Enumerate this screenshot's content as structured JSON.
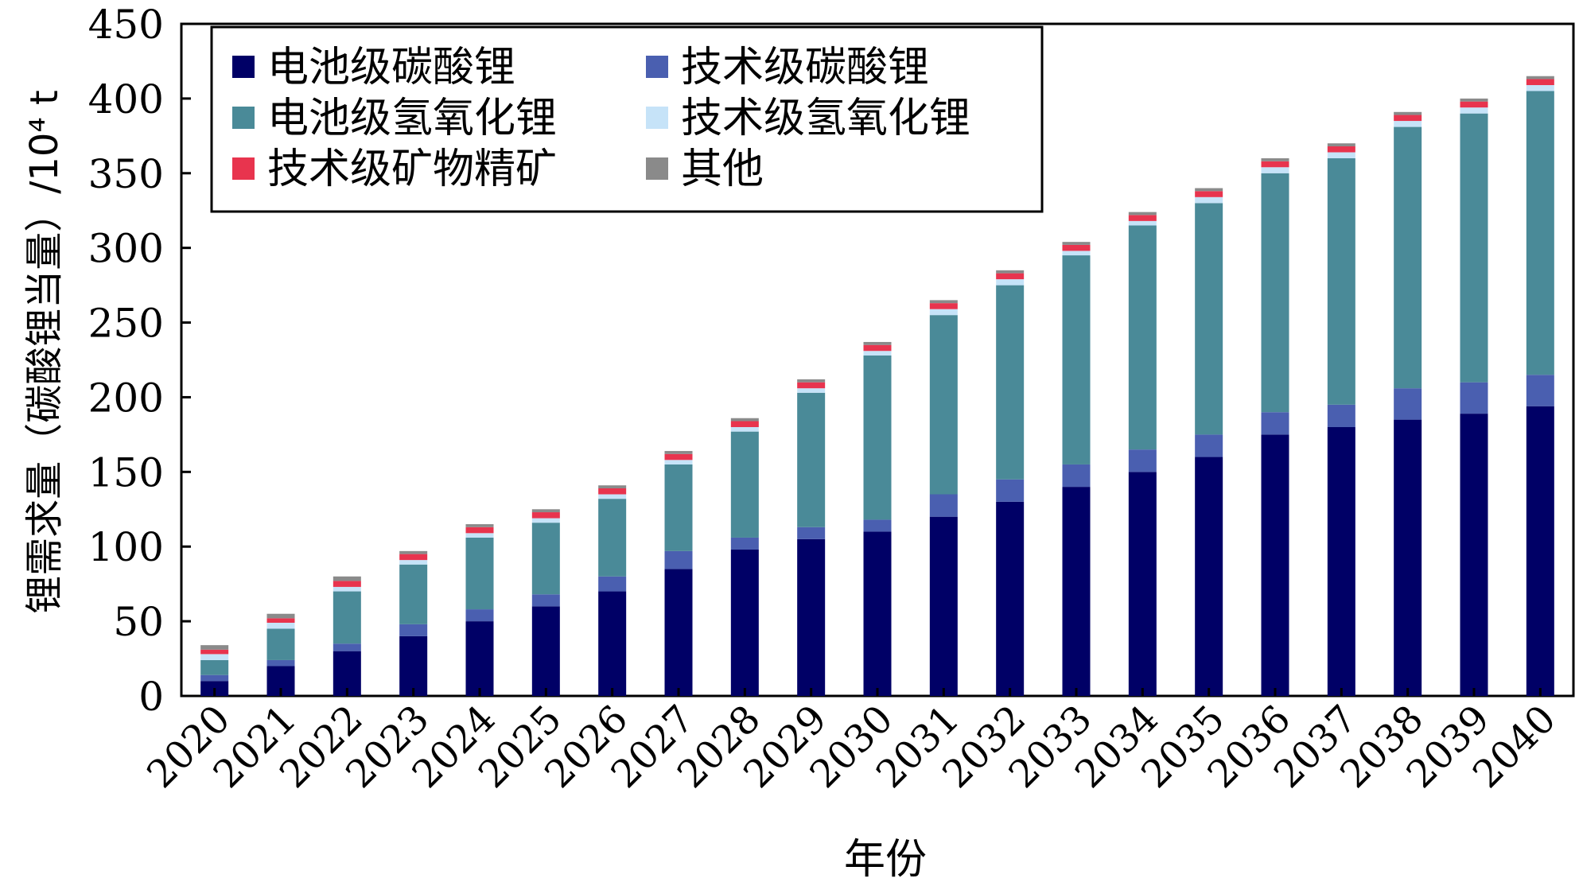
{
  "chart_data": {
    "type": "bar",
    "stacked": true,
    "title": "",
    "xlabel": "年份",
    "ylabel": "锂需求量（碳酸锂当量）/10⁴ t",
    "ylim": [
      0,
      450
    ],
    "yticks": [
      0,
      50,
      100,
      150,
      200,
      250,
      300,
      350,
      400,
      450
    ],
    "grid": false,
    "legend_position": "top-left",
    "categories": [
      "2020",
      "2021",
      "2022",
      "2023",
      "2024",
      "2025",
      "2026",
      "2027",
      "2028",
      "2029",
      "2030",
      "2031",
      "2032",
      "2033",
      "2034",
      "2035",
      "2036",
      "2037",
      "2038",
      "2039",
      "2040"
    ],
    "series": [
      {
        "name": "电池级碳酸锂",
        "color": "#000066",
        "values": [
          10,
          20,
          30,
          40,
          50,
          60,
          70,
          85,
          98,
          105,
          110,
          120,
          130,
          140,
          150,
          160,
          175,
          180,
          185,
          189,
          194
        ]
      },
      {
        "name": "技术级碳酸锂",
        "color": "#4a5fb0",
        "values": [
          4,
          4,
          5,
          8,
          8,
          8,
          10,
          12,
          8,
          8,
          8,
          15,
          15,
          15,
          15,
          15,
          15,
          15,
          21,
          21,
          21
        ]
      },
      {
        "name": "电池级氢氧化锂",
        "color": "#4a8a98",
        "values": [
          10,
          21,
          35,
          40,
          48,
          48,
          52,
          58,
          71,
          90,
          110,
          120,
          130,
          140,
          150,
          155,
          160,
          165,
          175,
          180,
          190
        ]
      },
      {
        "name": "技术级氢氧化锂",
        "color": "#c6e3f8",
        "values": [
          4,
          4,
          3,
          3,
          3,
          3,
          3,
          3,
          3,
          3,
          3,
          4,
          4,
          3,
          3,
          4,
          4,
          4,
          4,
          4,
          4
        ]
      },
      {
        "name": "技术级矿物精矿",
        "color": "#e8344e",
        "values": [
          3,
          3,
          4,
          4,
          4,
          4,
          4,
          4,
          4,
          4,
          4,
          4,
          4,
          4,
          4,
          4,
          4,
          4,
          4,
          4,
          4
        ]
      },
      {
        "name": "其他",
        "color": "#8a8a8a",
        "values": [
          3,
          3,
          3,
          2,
          2,
          2,
          2,
          2,
          2,
          2,
          2,
          2,
          2,
          2,
          2,
          2,
          2,
          2,
          2,
          2,
          2
        ]
      }
    ]
  }
}
